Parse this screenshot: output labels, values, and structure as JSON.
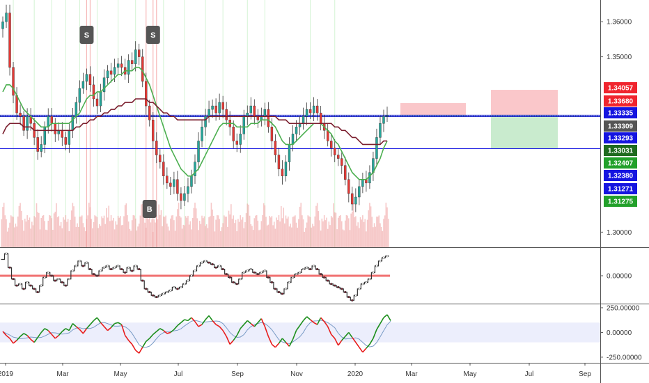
{
  "chart_data": {
    "type": "candlestick",
    "price_panel": {
      "y_ticks": [
        1.36,
        1.35,
        1.34,
        1.33,
        1.32,
        1.31,
        1.3
      ],
      "y_tick_labels": [
        "1.36000",
        "1.35000",
        "",
        "",
        "",
        "",
        "1.30000"
      ],
      "ylim": [
        1.2957,
        1.3662
      ],
      "horizontal_levels": [
        1.33335,
        1.33293,
        1.3238
      ],
      "dotted_level": 1.33309,
      "series": [
        {
          "name": "close",
          "values": [
            1.36,
            1.3625,
            1.347,
            1.339,
            1.334,
            1.333,
            1.329,
            1.333,
            1.331,
            1.327,
            1.323,
            1.325,
            1.33,
            1.333,
            1.331,
            1.328,
            1.329,
            1.327,
            1.325,
            1.329,
            1.333,
            1.337,
            1.341,
            1.343,
            1.345,
            1.342,
            1.338,
            1.336,
            1.34,
            1.344,
            1.346,
            1.345,
            1.347,
            1.348,
            1.347,
            1.345,
            1.349,
            1.348,
            1.352,
            1.35,
            1.343,
            1.336,
            1.332,
            1.326,
            1.322,
            1.32,
            1.316,
            1.314,
            1.313,
            1.315,
            1.311,
            1.309,
            1.311,
            1.313,
            1.316,
            1.32,
            1.326,
            1.33,
            1.333,
            1.335,
            1.336,
            1.334,
            1.337,
            1.335,
            1.332,
            1.33,
            1.326,
            1.325,
            1.328,
            1.333,
            1.334,
            1.336,
            1.333,
            1.332,
            1.333,
            1.335,
            1.33,
            1.326,
            1.322,
            1.318,
            1.316,
            1.32,
            1.325,
            1.328,
            1.33,
            1.331,
            1.333,
            1.335,
            1.334,
            1.336,
            1.334,
            1.331,
            1.329,
            1.326,
            1.324,
            1.322,
            1.321,
            1.319,
            1.315,
            1.311,
            1.308,
            1.31,
            1.313,
            1.315,
            1.314,
            1.317,
            1.321,
            1.327,
            1.331,
            1.333,
            1.3333
          ]
        },
        {
          "name": "ma_short",
          "values": [
            1.34,
            1.342,
            1.342,
            1.341,
            1.339,
            1.337,
            1.335,
            1.334,
            1.333,
            1.332,
            1.331,
            1.33,
            1.33,
            1.33,
            1.331,
            1.331,
            1.331,
            1.331,
            1.331,
            1.331,
            1.332,
            1.333,
            1.334,
            1.336,
            1.338,
            1.339,
            1.339,
            1.34,
            1.34,
            1.341,
            1.342,
            1.343,
            1.344,
            1.345,
            1.345,
            1.346,
            1.346,
            1.346,
            1.347,
            1.347,
            1.346,
            1.344,
            1.342,
            1.339,
            1.336,
            1.333,
            1.33,
            1.327,
            1.324,
            1.322,
            1.32,
            1.318,
            1.317,
            1.316,
            1.316,
            1.317,
            1.318,
            1.32,
            1.322,
            1.324,
            1.326,
            1.328,
            1.33,
            1.331,
            1.331,
            1.331,
            1.331,
            1.33,
            1.33,
            1.33,
            1.33,
            1.331,
            1.331,
            1.331,
            1.332,
            1.332,
            1.332,
            1.331,
            1.33,
            1.328,
            1.326,
            1.325,
            1.325,
            1.325,
            1.326,
            1.327,
            1.328,
            1.329,
            1.33,
            1.331,
            1.331,
            1.331,
            1.33,
            1.329,
            1.328,
            1.326,
            1.325,
            1.323,
            1.321,
            1.319,
            1.317,
            1.316,
            1.315,
            1.315,
            1.315,
            1.316,
            1.317,
            1.319,
            1.321,
            1.324,
            1.326
          ]
        },
        {
          "name": "ma_long",
          "values": [
            1.328,
            1.33,
            1.331,
            1.331,
            1.331,
            1.331,
            1.33,
            1.33,
            1.33,
            1.329,
            1.329,
            1.329,
            1.329,
            1.329,
            1.329,
            1.329,
            1.329,
            1.329,
            1.329,
            1.329,
            1.329,
            1.33,
            1.33,
            1.331,
            1.331,
            1.332,
            1.332,
            1.333,
            1.333,
            1.334,
            1.334,
            1.335,
            1.335,
            1.336,
            1.336,
            1.337,
            1.337,
            1.337,
            1.338,
            1.338,
            1.338,
            1.338,
            1.337,
            1.337,
            1.336,
            1.335,
            1.334,
            1.334,
            1.333,
            1.333,
            1.332,
            1.332,
            1.332,
            1.332,
            1.332,
            1.332,
            1.332,
            1.332,
            1.332,
            1.333,
            1.333,
            1.333,
            1.333,
            1.333,
            1.333,
            1.333,
            1.333,
            1.333,
            1.333,
            1.333,
            1.333,
            1.333,
            1.333,
            1.333,
            1.333,
            1.333,
            1.333,
            1.333,
            1.333,
            1.332,
            1.332,
            1.332,
            1.331,
            1.331,
            1.331,
            1.331,
            1.331,
            1.331,
            1.331,
            1.331,
            1.331,
            1.331,
            1.331,
            1.331,
            1.331,
            1.33,
            1.33,
            1.329,
            1.329,
            1.328,
            1.327,
            1.327,
            1.326,
            1.325,
            1.325,
            1.325,
            1.325,
            1.325,
            1.325,
            1.326,
            1.326
          ]
        }
      ],
      "markers": [
        {
          "label": "S",
          "x_index": 24,
          "side": "above"
        },
        {
          "label": "S",
          "x_index": 43,
          "side": "above"
        },
        {
          "label": "B",
          "x_index": 42,
          "side": "below"
        }
      ],
      "boxes": [
        {
          "x_start": 1.3368,
          "x_from": "Feb-end",
          "x_to": "Apr-end",
          "top": 1.3368,
          "mid": 1.33335,
          "bottom": 1.3238
        },
        {
          "from": "May-mid",
          "to": "Aug-mid",
          "top": 1.34057,
          "mid": 1.33335,
          "bottom": 1.3238
        }
      ]
    },
    "price_tags": [
      {
        "label": "1.34057",
        "value": 1.34057,
        "color": "#f0252e"
      },
      {
        "label": "1.33680",
        "value": 1.3368,
        "color": "#f0252e"
      },
      {
        "label": "1.33335",
        "value": 1.33335,
        "color": "#1515e0"
      },
      {
        "label": "1.33309",
        "value": 1.33309,
        "color": "#555555"
      },
      {
        "label": "1.33293",
        "value": 1.33293,
        "color": "#1515e0"
      },
      {
        "label": "1.33031",
        "value": 1.33031,
        "color": "#1e6a1e"
      },
      {
        "label": "1.32407",
        "value": 1.32407,
        "color": "#22a02a"
      },
      {
        "label": "1.32380",
        "value": 1.3238,
        "color": "#1515e0"
      },
      {
        "label": "1.31271",
        "value": 1.31271,
        "color": "#1515e0"
      },
      {
        "label": "1.31275",
        "value": 1.31275,
        "color": "#22a02a"
      }
    ],
    "momentum_panel": {
      "y_ticks": [
        0
      ],
      "y_tick_labels": [
        "0.00000"
      ],
      "values": [
        0.01,
        0.0135,
        0.005,
        -0.002,
        -0.006,
        -0.005,
        -0.008,
        -0.004,
        -0.006,
        -0.008,
        -0.01,
        -0.006,
        -0.001,
        0.002,
        0.0,
        -0.003,
        -0.002,
        -0.004,
        -0.006,
        -0.002,
        0.003,
        0.006,
        0.009,
        0.006,
        0.008,
        0.004,
        0.001,
        0.0,
        0.003,
        0.005,
        0.006,
        0.004,
        0.005,
        0.006,
        0.004,
        0.002,
        0.005,
        0.003,
        0.006,
        0.004,
        -0.003,
        -0.008,
        -0.01,
        -0.012,
        -0.013,
        -0.012,
        -0.011,
        -0.01,
        -0.009,
        -0.007,
        -0.008,
        -0.007,
        -0.005,
        -0.003,
        0.0,
        0.003,
        0.006,
        0.008,
        0.009,
        0.008,
        0.007,
        0.005,
        0.006,
        0.004,
        0.001,
        -0.001,
        -0.004,
        -0.005,
        -0.002,
        0.002,
        0.003,
        0.004,
        0.002,
        0.001,
        0.002,
        0.003,
        -0.001,
        -0.004,
        -0.008,
        -0.01,
        -0.011,
        -0.008,
        -0.004,
        -0.001,
        0.001,
        0.002,
        0.004,
        0.005,
        0.004,
        0.006,
        0.004,
        0.001,
        -0.001,
        -0.003,
        -0.005,
        -0.006,
        -0.007,
        -0.008,
        -0.01,
        -0.013,
        -0.015,
        -0.012,
        -0.008,
        -0.005,
        -0.004,
        -0.002,
        0.002,
        0.006,
        0.009,
        0.011,
        0.012
      ],
      "ylim": [
        -0.017,
        0.017
      ]
    },
    "oscillator_panel": {
      "y_ticks": [
        250,
        0,
        -250
      ],
      "y_tick_labels": [
        "250.00000",
        "0.00000",
        "-250.00000"
      ],
      "band": [
        -100,
        100
      ],
      "ylim": [
        -300,
        285
      ],
      "values": [
        10,
        -30,
        -60,
        -110,
        -80,
        -40,
        -10,
        -30,
        -70,
        -100,
        -50,
        0,
        40,
        20,
        -20,
        -60,
        -30,
        10,
        40,
        20,
        90,
        60,
        30,
        -10,
        40,
        80,
        120,
        150,
        100,
        60,
        20,
        50,
        90,
        100,
        80,
        -30,
        -80,
        -120,
        -180,
        -210,
        -150,
        -90,
        -60,
        -20,
        10,
        40,
        20,
        -10,
        0,
        30,
        70,
        100,
        130,
        120,
        150,
        110,
        60,
        80,
        130,
        170,
        120,
        80,
        60,
        20,
        -40,
        -120,
        -80,
        -30,
        40,
        80,
        120,
        90,
        60,
        100,
        140,
        60,
        -40,
        -120,
        -150,
        -110,
        -60,
        -100,
        -140,
        -70,
        20,
        70,
        120,
        160,
        130,
        100,
        80,
        150,
        110,
        60,
        -20,
        -60,
        -130,
        -80,
        -40,
        0,
        -50,
        -100,
        -150,
        -200,
        -160,
        -120,
        -60,
        30,
        90,
        150,
        180,
        120
      ]
    },
    "x_ticks": [
      "2019",
      "Mar",
      "May",
      "Jul",
      "Sep",
      "Nov",
      "2020",
      "Mar",
      "May",
      "Jul",
      "Sep"
    ],
    "x_tick_labels": [
      "2019",
      "Mar",
      "May",
      "Jul",
      "Sep",
      "Nov",
      "2020",
      "Mar",
      "May",
      "Jul",
      "Sep"
    ],
    "colors": {
      "up": "#26a69a",
      "down": "#e53935",
      "ma_short": "#4caf50",
      "ma_long": "#7b1f2e",
      "level": "#1515e0",
      "dotted": "#2e7d32",
      "box_red": "#f8b4b8",
      "box_green": "#b7e4bd",
      "marker_bg": "#555555",
      "volume": "#ef9a9a",
      "momentum": "#333333",
      "osc_green": "#1b8e1b",
      "osc_red": "#e81c1c",
      "osc_signal": "#7a9cc6",
      "band_fill": "#eceefc"
    }
  }
}
